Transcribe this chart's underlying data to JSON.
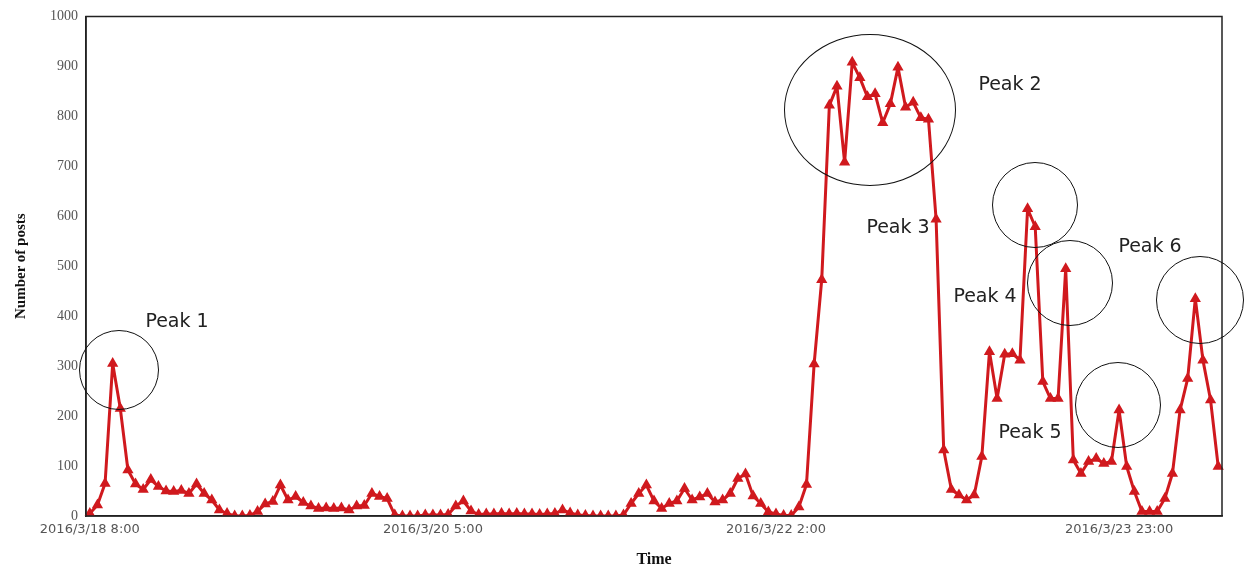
{
  "chart_data": {
    "type": "line",
    "xlabel": "Time",
    "ylabel": "Number of posts",
    "categories": [
      "2016/3/18 8:00",
      null,
      null,
      null,
      null,
      null,
      null,
      null,
      null,
      null,
      null,
      null,
      null,
      null,
      null,
      null,
      null,
      null,
      null,
      null,
      null,
      null,
      null,
      null,
      null,
      null,
      null,
      null,
      null,
      null,
      null,
      null,
      null,
      null,
      null,
      null,
      null,
      null,
      null,
      null,
      null,
      null,
      null,
      null,
      null,
      "2016/3/20 5:00",
      null,
      null,
      null,
      null,
      null,
      null,
      null,
      null,
      null,
      null,
      null,
      null,
      null,
      null,
      null,
      null,
      null,
      null,
      null,
      null,
      null,
      null,
      null,
      null,
      null,
      null,
      null,
      null,
      null,
      null,
      null,
      null,
      null,
      null,
      null,
      null,
      null,
      null,
      null,
      null,
      null,
      null,
      null,
      null,
      "2016/3/22 2:00",
      null,
      null,
      null,
      null,
      null,
      null,
      null,
      null,
      null,
      null,
      null,
      null,
      null,
      null,
      null,
      null,
      null,
      null,
      null,
      null,
      null,
      null,
      null,
      null,
      null,
      null,
      null,
      null,
      null,
      null,
      null,
      null,
      null,
      null,
      null,
      null,
      null,
      null,
      null,
      null,
      null,
      null,
      null,
      null,
      "2016/3/23 23:00",
      null,
      null,
      null,
      null,
      null,
      null,
      null,
      null,
      null,
      null,
      null,
      null,
      null
    ],
    "series": [
      {
        "color": "#d0191e",
        "values": [
          5,
          22,
          65,
          305,
          215,
          92,
          64,
          53,
          73,
          59,
          50,
          49,
          51,
          45,
          64,
          45,
          32,
          12,
          5,
          0,
          0,
          1,
          9,
          24,
          29,
          62,
          32,
          39,
          27,
          20,
          15,
          16,
          15,
          16,
          12,
          20,
          21,
          45,
          39,
          35,
          2,
          0,
          0,
          0,
          2,
          2,
          2,
          3,
          20,
          30,
          10,
          3,
          4,
          4,
          5,
          4,
          5,
          4,
          4,
          3,
          4,
          5,
          12,
          6,
          2,
          1,
          0,
          0,
          0,
          0,
          2,
          25,
          45,
          62,
          30,
          15,
          25,
          30,
          55,
          32,
          38,
          45,
          28,
          32,
          45,
          75,
          84,
          40,
          25,
          8,
          4,
          1,
          1,
          18,
          63,
          304,
          473,
          822,
          860,
          708,
          908,
          877,
          839,
          845,
          787,
          825,
          898,
          818,
          828,
          797,
          794,
          594,
          132,
          53,
          42,
          32,
          42,
          119,
          329,
          235,
          324,
          325,
          312,
          615,
          579,
          269,
          235,
          235,
          495,
          112,
          85,
          109,
          115,
          105,
          109,
          212,
          99,
          49,
          9,
          9,
          9,
          35,
          85,
          212,
          275,
          435,
          312,
          232,
          99
        ]
      }
    ],
    "ylim": [
      0,
      1000
    ],
    "yticks": [
      0,
      100,
      200,
      300,
      400,
      500,
      600,
      700,
      800,
      900,
      1000
    ],
    "marker": "triangle",
    "line_style": "solid",
    "grid": false,
    "legend": false,
    "annotations": [
      "Peak 1",
      "Peak 2",
      "Peak 3",
      "Peak 4",
      "Peak 5",
      "Peak 6"
    ]
  }
}
